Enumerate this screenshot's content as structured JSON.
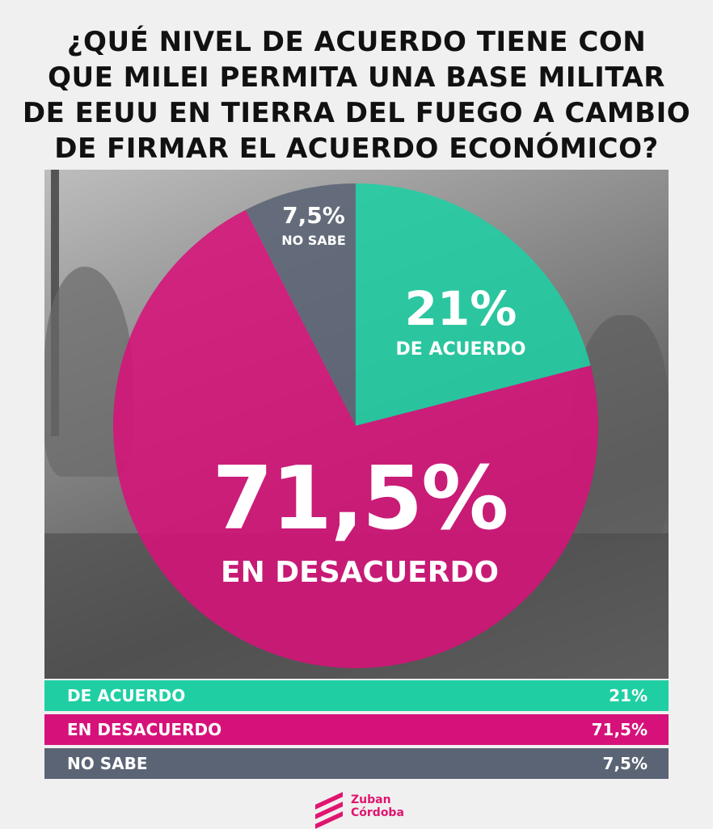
{
  "title_lines": [
    "¿QUÉ NIVEL DE ACUERDO TIENE CON",
    "QUE MILEI PERMITA UNA BASE MILITAR",
    "DE EEUU EN TIERRA DEL FUEGO A CAMBIO",
    "DE FIRMAR EL ACUERDO ECONÓMICO?"
  ],
  "chart_data": {
    "type": "pie",
    "slices": [
      {
        "label": "DE ACUERDO",
        "value": 21,
        "display": "21%",
        "color": "#1fcfa3"
      },
      {
        "label": "EN DESACUERDO",
        "value": 71.5,
        "display": "71,5%",
        "color": "#d6127a"
      },
      {
        "label": "NO SABE",
        "value": 7.5,
        "display": "7,5%",
        "color": "#5b6475"
      }
    ]
  },
  "pie_labels": {
    "acuerdo_pct": "21%",
    "acuerdo_txt": "DE ACUERDO",
    "desacuerdo_pct": "71,5%",
    "desacuerdo_txt": "EN DESACUERDO",
    "nosabe_pct": "7,5%",
    "nosabe_txt": "NO SABE"
  },
  "legend": [
    {
      "label": "DE ACUERDO",
      "value": "21%",
      "color": "#1fcfa3"
    },
    {
      "label": "EN DESACUERDO",
      "value": "71,5%",
      "color": "#d6127a"
    },
    {
      "label": "NO SABE",
      "value": "7,5%",
      "color": "#5b6475"
    }
  ],
  "logo": {
    "line1": "Zuban",
    "line2": "Córdoba"
  }
}
